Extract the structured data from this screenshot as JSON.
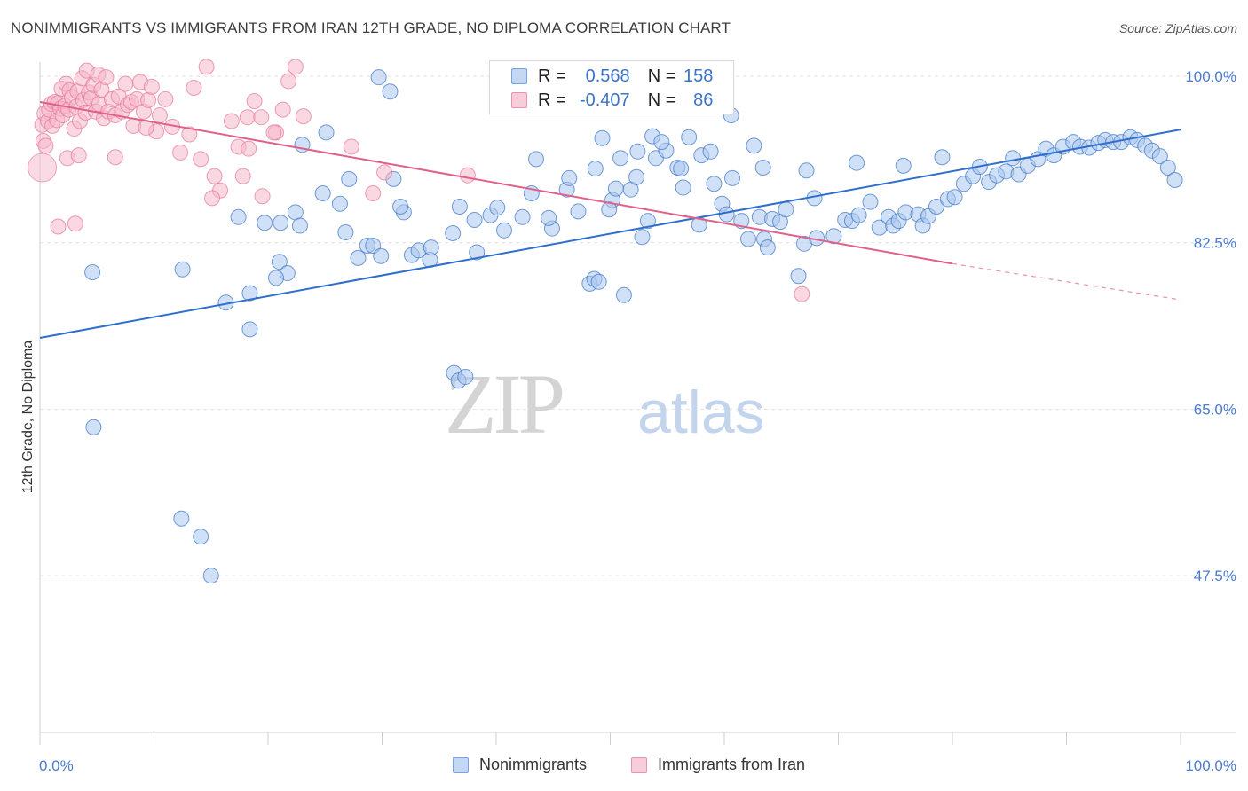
{
  "header": {
    "title": "NONIMMIGRANTS VS IMMIGRANTS FROM IRAN 12TH GRADE, NO DIPLOMA CORRELATION CHART",
    "source": "Source: ZipAtlas.com"
  },
  "legend": {
    "r_label": "R =",
    "n_label": "N =",
    "rows": [
      {
        "r": "0.568",
        "n": "158",
        "color": "#a9c6ee"
      },
      {
        "r": "-0.407",
        "n": "86",
        "color": "#f5b8cb"
      }
    ]
  },
  "watermark": {
    "part1": "ZIP",
    "part2": "atlas"
  },
  "chart_data": {
    "type": "scatter",
    "title": "NONIMMIGRANTS VS IMMIGRANTS FROM IRAN 12TH GRADE, NO DIPLOMA CORRELATION CHART",
    "xlabel": "",
    "ylabel": "12th Grade, No Diploma",
    "xlim": [
      0,
      100
    ],
    "ylim": [
      31,
      101.5
    ],
    "x_tick_labels": [
      "0.0%",
      "100.0%"
    ],
    "y_tick_labels": [
      "100.0%",
      "82.5%",
      "65.0%",
      "47.5%"
    ],
    "y_ticks": [
      100.0,
      82.5,
      65.0,
      47.5
    ],
    "grid": true,
    "legend_position": "top-center",
    "series": [
      {
        "name": "Nonimmigrants",
        "color": "#a9c6ee",
        "edge": "#3b73c5",
        "trend": {
          "x0": 0,
          "y0": 72.5,
          "x1": 100,
          "y1": 94.4
        },
        "points": [
          [
            4.6,
            79.4
          ],
          [
            4.7,
            63.1
          ],
          [
            12.5,
            79.7
          ],
          [
            12.4,
            53.5
          ],
          [
            14.1,
            51.6
          ],
          [
            15,
            47.5
          ],
          [
            17.4,
            85.2
          ],
          [
            18.4,
            77.2
          ],
          [
            18.4,
            73.4
          ],
          [
            19.7,
            84.6
          ],
          [
            21,
            80.5
          ],
          [
            21.1,
            84.6
          ],
          [
            21.7,
            79.3
          ],
          [
            22.4,
            85.7
          ],
          [
            23,
            92.8
          ],
          [
            25.1,
            94.1
          ],
          [
            26.8,
            83.6
          ],
          [
            27.1,
            89.2
          ],
          [
            27.9,
            80.9
          ],
          [
            28.7,
            82.2
          ],
          [
            29.2,
            82.2
          ],
          [
            29.7,
            99.9
          ],
          [
            29.9,
            81.1
          ],
          [
            30.7,
            98.4
          ],
          [
            31,
            89.2
          ],
          [
            31.9,
            85.7
          ],
          [
            32.6,
            81.2
          ],
          [
            33.2,
            81.7
          ],
          [
            34.2,
            80.7
          ],
          [
            36.3,
            68.8
          ],
          [
            36.7,
            68.0
          ],
          [
            37.3,
            68.4
          ],
          [
            38.3,
            81.5
          ],
          [
            39.5,
            85.4
          ],
          [
            40.7,
            83.8
          ],
          [
            42.3,
            85.2
          ],
          [
            43.5,
            91.3
          ],
          [
            44.9,
            84.0
          ],
          [
            46.2,
            88.1
          ],
          [
            47.2,
            85.8
          ],
          [
            48.2,
            78.2
          ],
          [
            48.6,
            78.7
          ],
          [
            49,
            78.4
          ],
          [
            49.3,
            93.5
          ],
          [
            50.2,
            87.0
          ],
          [
            50.5,
            88.2
          ],
          [
            51.2,
            77.0
          ],
          [
            51.8,
            88.1
          ],
          [
            52.3,
            89.4
          ],
          [
            52.8,
            83.1
          ],
          [
            53.3,
            84.8
          ],
          [
            54,
            91.4
          ],
          [
            54.9,
            92.2
          ],
          [
            55.9,
            90.4
          ],
          [
            56.2,
            90.3
          ],
          [
            56.9,
            93.6
          ],
          [
            58,
            91.7
          ],
          [
            59.1,
            88.7
          ],
          [
            59.8,
            86.6
          ],
          [
            60.2,
            85.5
          ],
          [
            61.5,
            84.8
          ],
          [
            62.1,
            82.9
          ],
          [
            63.1,
            85.2
          ],
          [
            63.5,
            82.9
          ],
          [
            63.8,
            82.0
          ],
          [
            64.2,
            85.0
          ],
          [
            64.9,
            84.7
          ],
          [
            65.4,
            86.0
          ],
          [
            66.5,
            79.0
          ],
          [
            67,
            82.4
          ],
          [
            67.9,
            87.2
          ],
          [
            68.1,
            83.0
          ],
          [
            69.6,
            83.2
          ],
          [
            70.6,
            84.9
          ],
          [
            71.2,
            84.8
          ],
          [
            71.8,
            85.4
          ],
          [
            72.8,
            86.8
          ],
          [
            73.6,
            84.1
          ],
          [
            74.4,
            85.2
          ],
          [
            74.8,
            84.3
          ],
          [
            75.3,
            84.8
          ],
          [
            75.9,
            85.7
          ],
          [
            77,
            85.5
          ],
          [
            77.4,
            84.3
          ],
          [
            77.9,
            85.3
          ],
          [
            78.6,
            86.3
          ],
          [
            79.6,
            87.1
          ],
          [
            80.2,
            87.3
          ],
          [
            81,
            88.7
          ],
          [
            81.8,
            89.5
          ],
          [
            82.4,
            90.5
          ],
          [
            83.2,
            88.9
          ],
          [
            83.9,
            89.6
          ],
          [
            84.7,
            90.0
          ],
          [
            85.3,
            91.4
          ],
          [
            85.8,
            89.7
          ],
          [
            86.6,
            90.6
          ],
          [
            87.5,
            91.3
          ],
          [
            88.2,
            92.4
          ],
          [
            88.9,
            91.7
          ],
          [
            89.7,
            92.6
          ],
          [
            90.6,
            93.1
          ],
          [
            91.2,
            92.6
          ],
          [
            92,
            92.5
          ],
          [
            92.8,
            93.0
          ],
          [
            93.4,
            93.3
          ],
          [
            94.1,
            93.1
          ],
          [
            94.8,
            93.1
          ],
          [
            95.6,
            93.6
          ],
          [
            96.2,
            93.3
          ],
          [
            96.9,
            92.7
          ],
          [
            97.5,
            92.2
          ],
          [
            98.2,
            91.6
          ],
          [
            98.9,
            90.4
          ],
          [
            99.5,
            89.1
          ],
          [
            53.7,
            93.7
          ],
          [
            58.8,
            92.1
          ],
          [
            62.6,
            92.7
          ],
          [
            56.4,
            88.3
          ],
          [
            67.2,
            90.1
          ],
          [
            71.6,
            90.9
          ],
          [
            75.7,
            90.6
          ],
          [
            79.1,
            91.5
          ],
          [
            63.4,
            90.4
          ],
          [
            60.7,
            89.3
          ],
          [
            57.8,
            84.4
          ],
          [
            49.9,
            86.0
          ],
          [
            44.6,
            85.1
          ],
          [
            36.8,
            86.3
          ],
          [
            31.6,
            86.3
          ],
          [
            26.3,
            86.6
          ],
          [
            24.8,
            87.7
          ],
          [
            22.8,
            84.3
          ],
          [
            16.3,
            76.2
          ],
          [
            20.7,
            78.8
          ],
          [
            34.3,
            82.0
          ],
          [
            36.2,
            83.5
          ],
          [
            38.1,
            84.9
          ],
          [
            40.1,
            86.2
          ],
          [
            43.1,
            87.7
          ],
          [
            46.4,
            89.3
          ],
          [
            48.7,
            90.3
          ],
          [
            50.9,
            91.4
          ],
          [
            52.4,
            92.1
          ],
          [
            54.5,
            93.1
          ],
          [
            60.6,
            95.9
          ]
        ]
      },
      {
        "name": "Immigrants from Iran",
        "color": "#f5b8cb",
        "edge": "#e57598",
        "trend": {
          "x0": 0,
          "y0": 97.3,
          "x1": 80,
          "y1": 80.3,
          "dash_x1": 100,
          "dash_y1": 76.5
        },
        "points": [
          [
            0.2,
            94.9
          ],
          [
            0.3,
            93.2
          ],
          [
            0.4,
            96.1
          ],
          [
            0.5,
            92.7
          ],
          [
            0.7,
            95.3
          ],
          [
            0.8,
            96.5
          ],
          [
            1,
            97.1
          ],
          [
            1.1,
            94.8
          ],
          [
            1.3,
            97.3
          ],
          [
            1.5,
            95.4
          ],
          [
            1.6,
            97.2
          ],
          [
            1.8,
            96.6
          ],
          [
            1.9,
            98.7
          ],
          [
            2,
            95.9
          ],
          [
            2.2,
            96.9
          ],
          [
            2.3,
            99.2
          ],
          [
            2.5,
            96.5
          ],
          [
            2.6,
            98.5
          ],
          [
            2.8,
            97.8
          ],
          [
            3,
            94.5
          ],
          [
            3.2,
            96.8
          ],
          [
            3.3,
            98.4
          ],
          [
            3.5,
            95.3
          ],
          [
            3.7,
            99.8
          ],
          [
            3.8,
            97.5
          ],
          [
            4,
            96.2
          ],
          [
            4.1,
            100.6
          ],
          [
            4.3,
            98.3
          ],
          [
            4.5,
            97.7
          ],
          [
            4.7,
            99.1
          ],
          [
            4.9,
            96.3
          ],
          [
            5.1,
            100.2
          ],
          [
            5.2,
            97.1
          ],
          [
            5.4,
            98.6
          ],
          [
            5.6,
            95.6
          ],
          [
            5.8,
            99.9
          ],
          [
            6,
            96.3
          ],
          [
            6.3,
            97.6
          ],
          [
            6.6,
            95.9
          ],
          [
            6.9,
            97.9
          ],
          [
            7.2,
            96.3
          ],
          [
            7.5,
            99.2
          ],
          [
            7.7,
            97.0
          ],
          [
            8,
            97.3
          ],
          [
            8.2,
            94.8
          ],
          [
            8.5,
            97.6
          ],
          [
            8.8,
            99.4
          ],
          [
            9.1,
            96.3
          ],
          [
            9.5,
            97.5
          ],
          [
            9.8,
            98.9
          ],
          [
            10.2,
            94.2
          ],
          [
            10.5,
            95.9
          ],
          [
            11,
            97.6
          ],
          [
            11.6,
            94.7
          ],
          [
            12.3,
            92.0
          ],
          [
            13.1,
            93.9
          ],
          [
            13.5,
            98.8
          ],
          [
            14.1,
            91.3
          ],
          [
            14.6,
            101.0
          ],
          [
            15.3,
            89.5
          ],
          [
            15.8,
            88.0
          ],
          [
            16.8,
            95.3
          ],
          [
            17.4,
            92.6
          ],
          [
            17.8,
            89.5
          ],
          [
            18.2,
            95.7
          ],
          [
            18.8,
            97.4
          ],
          [
            19.5,
            87.4
          ],
          [
            20.7,
            94.1
          ],
          [
            21.3,
            96.5
          ],
          [
            21.8,
            99.5
          ],
          [
            22.4,
            101.0
          ],
          [
            23.1,
            95.8
          ],
          [
            2.4,
            91.4
          ],
          [
            3.4,
            91.7
          ],
          [
            1.6,
            84.2
          ],
          [
            3.1,
            84.5
          ],
          [
            6.6,
            91.5
          ],
          [
            9.3,
            94.6
          ],
          [
            15.1,
            87.2
          ],
          [
            18.3,
            92.4
          ],
          [
            19.4,
            95.7
          ],
          [
            27.3,
            92.6
          ],
          [
            29.2,
            87.7
          ],
          [
            30.2,
            89.9
          ],
          [
            37.5,
            89.6
          ],
          [
            20.5,
            94.1
          ],
          [
            66.8,
            77.1
          ]
        ]
      }
    ]
  },
  "bottom_legend": {
    "items": [
      "Nonimmigrants",
      "Immigrants from Iran"
    ]
  }
}
